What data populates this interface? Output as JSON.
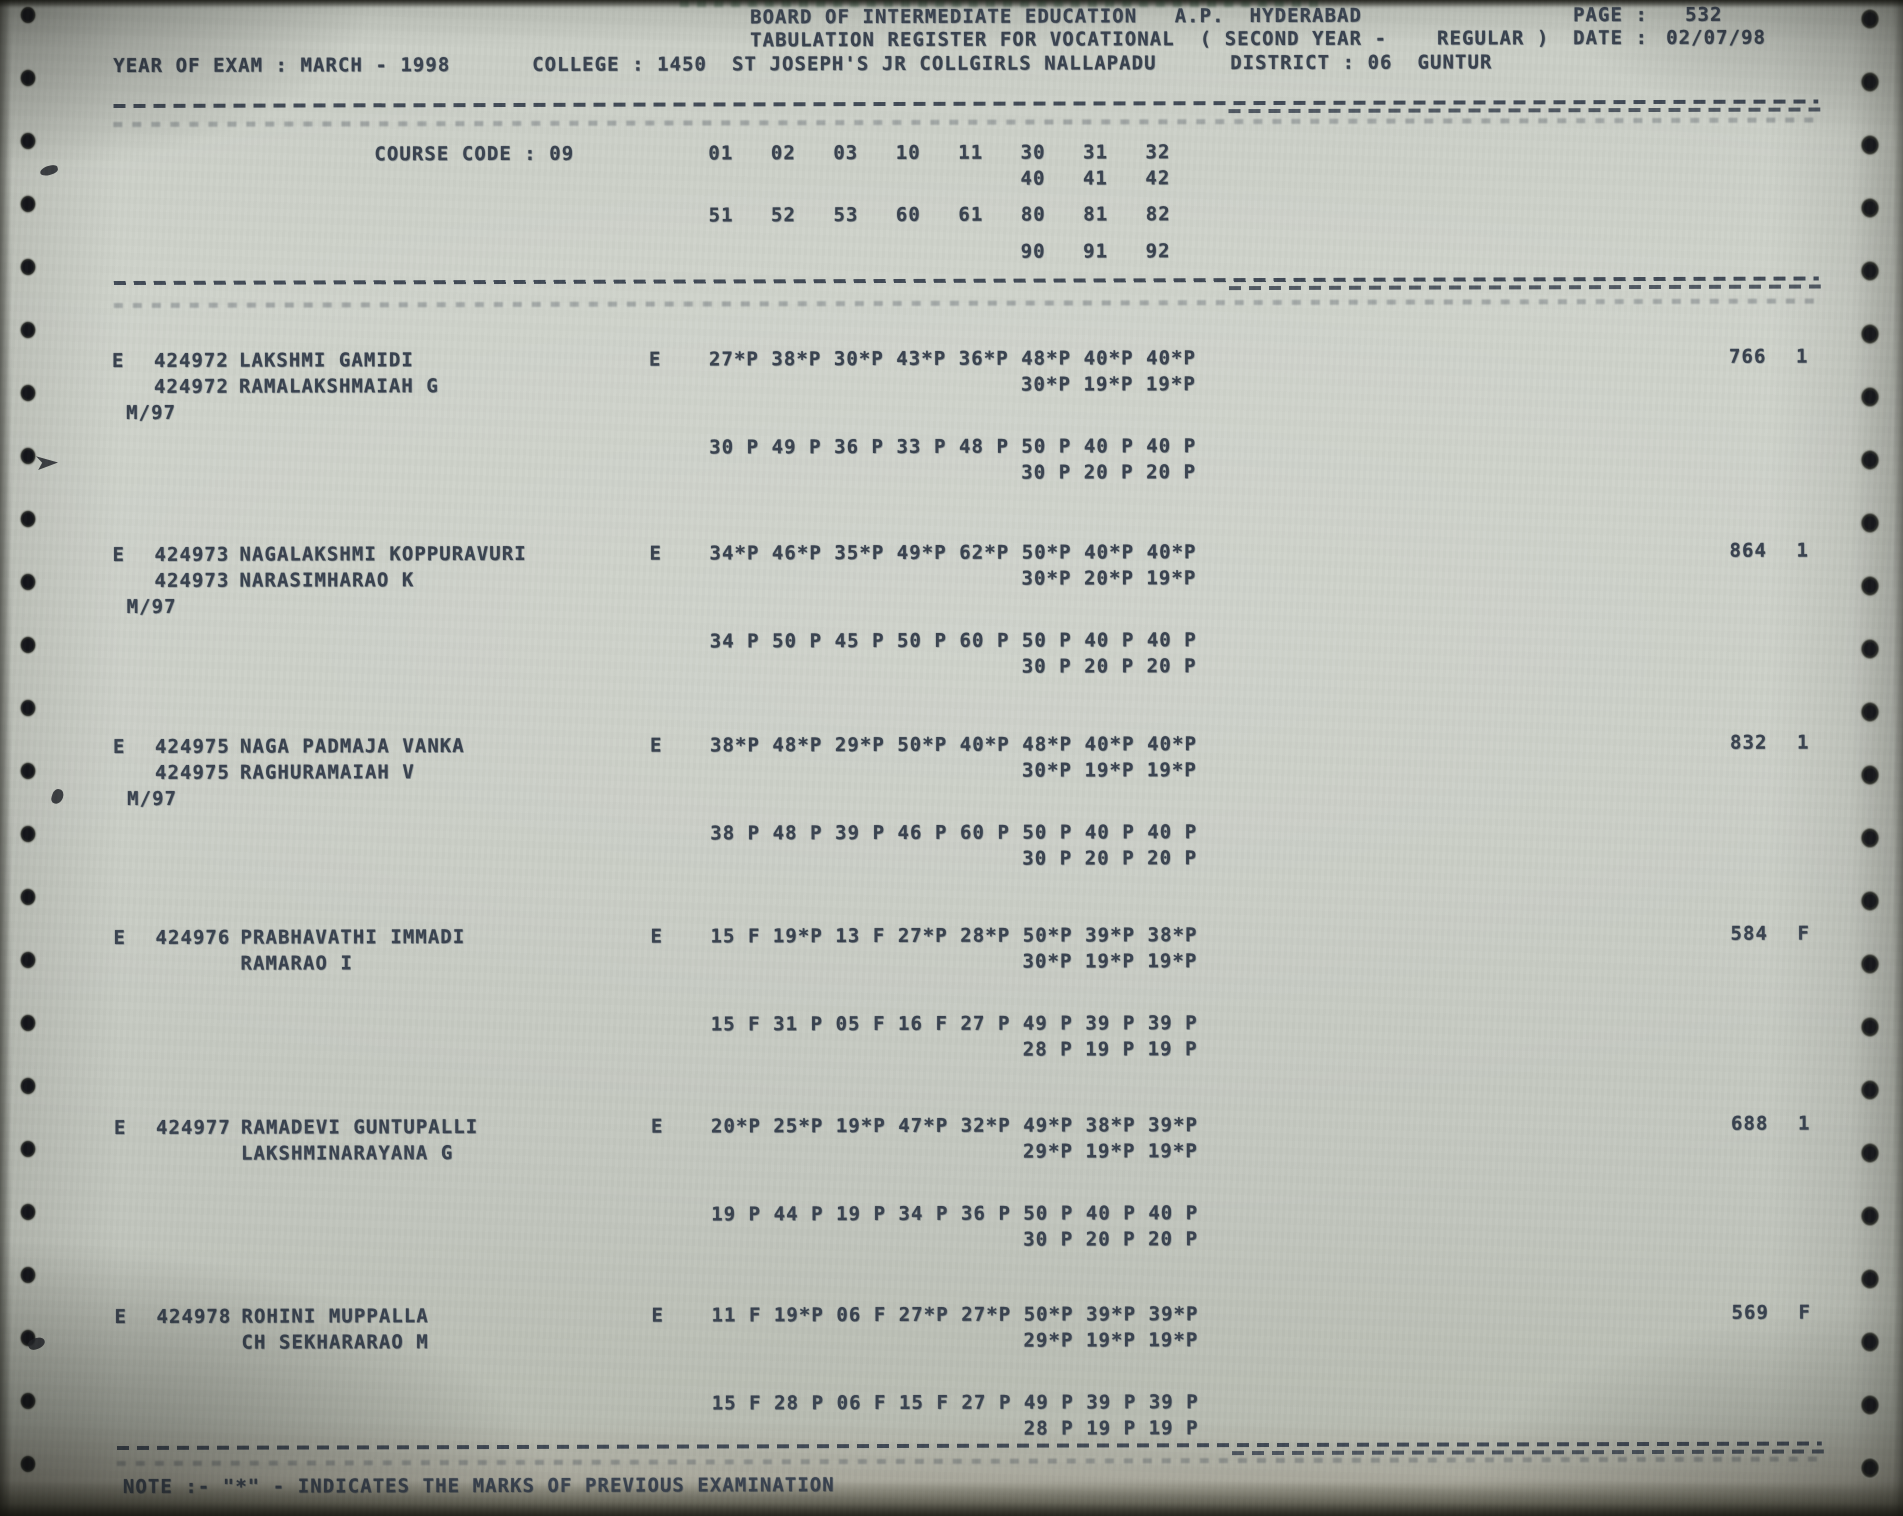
{
  "document": {
    "board_line": "BOARD OF INTERMEDIATE EDUCATION   A.P.  HYDERABAD",
    "page_label": "PAGE :",
    "page_number": "532",
    "register_line": "TABULATION REGISTER FOR VOCATIONAL  ( SECOND YEAR -    REGULAR )",
    "date_label": "DATE :",
    "date_value": "02/07/98",
    "year_of_exam": "YEAR OF EXAM : MARCH - 1998",
    "college_line": "COLLEGE : 1450  ST JOSEPH'S JR COLLGIRLS NALLAPADU",
    "district_line": "DISTRICT : 06  GUNTUR",
    "course_code_label": "COURSE CODE : 09",
    "subject_codes_row1": "01   02   03   10   11   30   31   32",
    "subject_codes_row2": "40   41   42",
    "subject_codes_row3": "51   52   53   60   61   80   81   82",
    "subject_codes_row4": "90   91   92",
    "note": "NOTE :- \"*\" - INDICATES THE MARKS OF PREVIOUS EXAMINATION"
  },
  "records": [
    {
      "flag": "E",
      "roll": "424972",
      "name": "LAKSHMI GAMIDI",
      "roll2": "424972",
      "parent": "RAMALAKSHMAIAH G",
      "prev": "M/97",
      "medium": "E",
      "marks1": "27*P 38*P 30*P 43*P 36*P 48*P 40*P 40*P",
      "marks1b": "30*P 19*P 19*P",
      "marks2": "30 P 49 P 36 P 33 P 48 P 50 P 40 P 40 P",
      "marks2b": "30 P 20 P 20 P",
      "total": "766",
      "result": "1"
    },
    {
      "flag": "E",
      "roll": "424973",
      "name": "NAGALAKSHMI KOPPURAVURI",
      "roll2": "424973",
      "parent": "NARASIMHARAO K",
      "prev": "M/97",
      "medium": "E",
      "marks1": "34*P 46*P 35*P 49*P 62*P 50*P 40*P 40*P",
      "marks1b": "30*P 20*P 19*P",
      "marks2": "34 P 50 P 45 P 50 P 60 P 50 P 40 P 40 P",
      "marks2b": "30 P 20 P 20 P",
      "total": "864",
      "result": "1"
    },
    {
      "flag": "E",
      "roll": "424975",
      "name": "NAGA PADMAJA VANKA",
      "roll2": "424975",
      "parent": "RAGHURAMAIAH V",
      "prev": "M/97",
      "medium": "E",
      "marks1": "38*P 48*P 29*P 50*P 40*P 48*P 40*P 40*P",
      "marks1b": "30*P 19*P 19*P",
      "marks2": "38 P 48 P 39 P 46 P 60 P 50 P 40 P 40 P",
      "marks2b": "30 P 20 P 20 P",
      "total": "832",
      "result": "1"
    },
    {
      "flag": "E",
      "roll": "424976",
      "name": "PRABHAVATHI IMMADI",
      "roll2": "",
      "parent": "RAMARAO I",
      "prev": "",
      "medium": "E",
      "marks1": "15 F 19*P 13 F 27*P 28*P 50*P 39*P 38*P",
      "marks1b": "30*P 19*P 19*P",
      "marks2": "15 F 31 P 05 F 16 F 27 P 49 P 39 P 39 P",
      "marks2b": "28 P 19 P 19 P",
      "total": "584",
      "result": "F"
    },
    {
      "flag": "E",
      "roll": "424977",
      "name": "RAMADEVI GUNTUPALLI",
      "roll2": "",
      "parent": "LAKSHMINARAYANA G",
      "prev": "",
      "medium": "E",
      "marks1": "20*P 25*P 19*P 47*P 32*P 49*P 38*P 39*P",
      "marks1b": "29*P 19*P 19*P",
      "marks2": "19 P 44 P 19 P 34 P 36 P 50 P 40 P 40 P",
      "marks2b": "30 P 20 P 20 P",
      "total": "688",
      "result": "1"
    },
    {
      "flag": "E",
      "roll": "424978",
      "name": "ROHINI MUPPALLA",
      "roll2": "",
      "parent": "CH SEKHARARAO M",
      "prev": "",
      "medium": "E",
      "marks1": "11 F 19*P 06 F 27*P 27*P 50*P 39*P 39*P",
      "marks1b": "29*P 19*P 19*P",
      "marks2": "15 F 28 P 06 F 15 F 27 P 49 P 39 P 39 P",
      "marks2b": "28 P 19 P 19 P",
      "total": "569",
      "result": "F"
    }
  ],
  "colors": {
    "ink": "#3a4350",
    "paper": "#c9cdc5"
  }
}
